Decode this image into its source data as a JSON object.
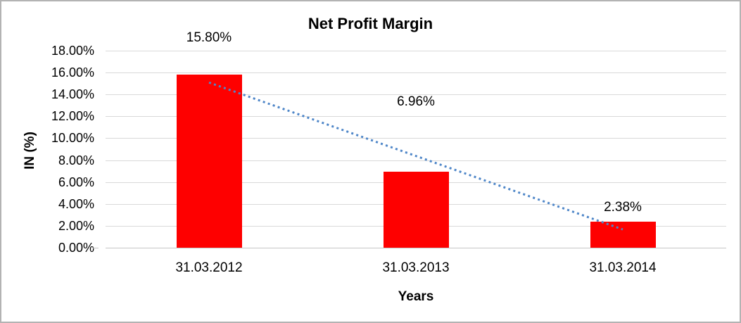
{
  "chart_data": {
    "type": "bar",
    "title": "Net Profit Margin",
    "xlabel": "Years",
    "ylabel": "IN (%)",
    "categories": [
      "31.03.2012",
      "31.03.2013",
      "31.03.2014"
    ],
    "values": [
      15.8,
      6.96,
      2.38
    ],
    "data_labels": [
      "15.80%",
      "6.96%",
      "2.38%"
    ],
    "ytick_labels": [
      "18.00%",
      "16.00%",
      "14.00%",
      "12.00%",
      "10.00%",
      "8.00%",
      "6.00%",
      "4.00%",
      "2.00%",
      "0.00%"
    ],
    "ylim": [
      0,
      18
    ],
    "ytick_step": 2,
    "grid": true,
    "legend": false,
    "trendline": {
      "type": "linear",
      "style": "dotted"
    },
    "colors": {
      "bar": "#FE0000",
      "trendline": "#4E86C8",
      "gridline": "#D9D9D9",
      "axis_line": "#C6C6C6",
      "text": "#000000",
      "frame_border": "#B3B3B3",
      "background": "#FFFFFF"
    }
  }
}
